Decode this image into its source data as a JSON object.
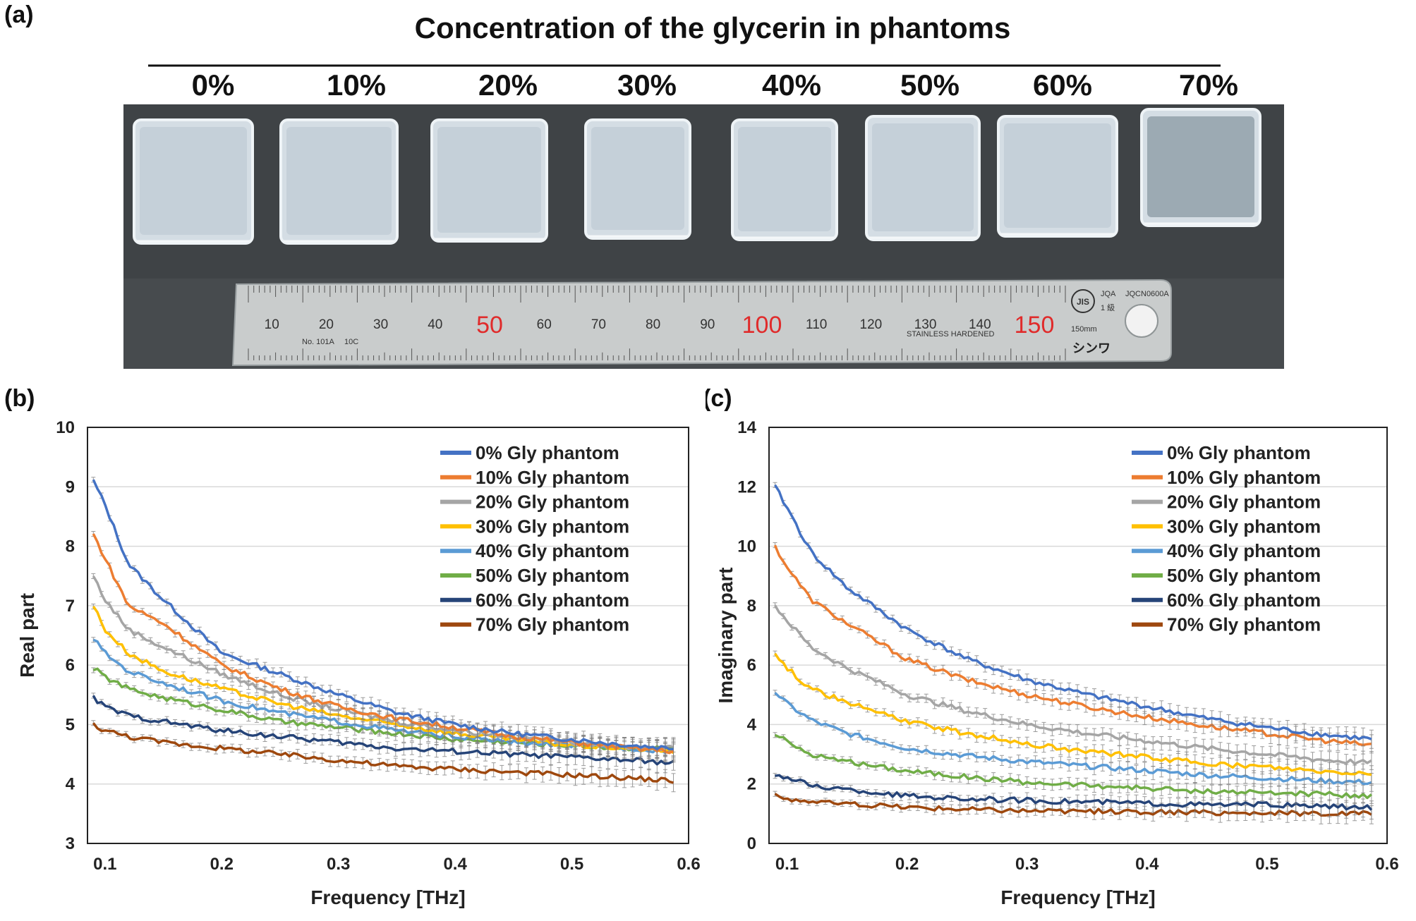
{
  "panel_a": {
    "label": "(a)",
    "title": "Concentration of the glycerin in phantoms",
    "concentrations": [
      "0%",
      "10%",
      "20%",
      "30%",
      "40%",
      "50%",
      "60%",
      "70%"
    ],
    "ruler": {
      "numbers": [
        "10",
        "20",
        "30",
        "40",
        "50",
        "60",
        "70",
        "80",
        "90",
        "100",
        "110",
        "120",
        "130",
        "140",
        "150"
      ],
      "red_numbers": [
        "50",
        "100",
        "150"
      ],
      "small_texts": [
        "No. 101A",
        "10C",
        "STAINLESS HARDENED",
        "JQA",
        "JQCN0600A",
        "1 級",
        "150mm"
      ],
      "badge": "JIS",
      "brand": "シンワ"
    }
  },
  "chart_data": [
    {
      "label": "(b)",
      "type": "line",
      "title": "",
      "xlabel": "Frequency [THz]",
      "ylabel": "Real part",
      "xlim": [
        0.085,
        0.6
      ],
      "ylim": [
        3,
        10
      ],
      "xticks": [
        "0.1",
        "0.2",
        "0.3",
        "0.4",
        "0.5",
        "0.6"
      ],
      "yticks": [
        "3",
        "4",
        "5",
        "6",
        "7",
        "8",
        "9",
        "10"
      ],
      "grid": true,
      "legend_position": "top-right",
      "x": [
        0.09,
        0.1,
        0.12,
        0.15,
        0.2,
        0.25,
        0.3,
        0.35,
        0.4,
        0.45,
        0.5,
        0.55,
        0.59
      ],
      "series": [
        {
          "name": "0% Gly phantom",
          "color": "#4472c4",
          "values": [
            9.1,
            8.7,
            7.7,
            7.1,
            6.2,
            5.85,
            5.5,
            5.2,
            5.0,
            4.85,
            4.75,
            4.65,
            4.6
          ]
        },
        {
          "name": "10% Gly phantom",
          "color": "#ed7d31",
          "values": [
            8.2,
            7.8,
            7.0,
            6.7,
            6.0,
            5.6,
            5.3,
            5.1,
            4.95,
            4.8,
            4.7,
            4.6,
            4.55
          ]
        },
        {
          "name": "20% Gly phantom",
          "color": "#a5a5a5",
          "values": [
            7.5,
            7.1,
            6.6,
            6.3,
            5.85,
            5.5,
            5.25,
            5.05,
            4.9,
            4.8,
            4.7,
            4.62,
            4.6
          ]
        },
        {
          "name": "30% Gly phantom",
          "color": "#ffc000",
          "values": [
            7.0,
            6.6,
            6.2,
            5.9,
            5.6,
            5.35,
            5.15,
            5.0,
            4.85,
            4.75,
            4.65,
            4.6,
            4.55
          ]
        },
        {
          "name": "40% Gly phantom",
          "color": "#5b9bd5",
          "values": [
            6.45,
            6.2,
            5.9,
            5.7,
            5.4,
            5.2,
            5.05,
            4.9,
            4.8,
            4.7,
            4.65,
            4.6,
            4.55
          ]
        },
        {
          "name": "50% Gly phantom",
          "color": "#70ad47",
          "values": [
            5.95,
            5.8,
            5.6,
            5.45,
            5.25,
            5.05,
            4.95,
            4.85,
            4.75,
            4.7,
            4.65,
            4.6,
            4.6
          ]
        },
        {
          "name": "60% Gly phantom",
          "color": "#264478",
          "values": [
            5.45,
            5.3,
            5.15,
            5.05,
            4.9,
            4.8,
            4.7,
            4.6,
            4.55,
            4.5,
            4.45,
            4.4,
            4.35
          ]
        },
        {
          "name": "70% Gly phantom",
          "color": "#9e480e",
          "values": [
            5.0,
            4.9,
            4.8,
            4.7,
            4.6,
            4.5,
            4.4,
            4.3,
            4.25,
            4.2,
            4.15,
            4.1,
            4.05
          ]
        }
      ]
    },
    {
      "label": "(c)",
      "type": "line",
      "title": "",
      "xlabel": "Frequency [THz]",
      "ylabel": "Imaginary part",
      "xlim": [
        0.085,
        0.6
      ],
      "ylim": [
        0,
        14
      ],
      "xticks": [
        "0.1",
        "0.2",
        "0.3",
        "0.4",
        "0.5",
        "0.6"
      ],
      "yticks": [
        "0",
        "2",
        "4",
        "6",
        "8",
        "10",
        "12",
        "14"
      ],
      "grid": true,
      "legend_position": "top-right",
      "x": [
        0.09,
        0.1,
        0.12,
        0.15,
        0.2,
        0.25,
        0.3,
        0.35,
        0.4,
        0.45,
        0.5,
        0.55,
        0.59
      ],
      "series": [
        {
          "name": "0% Gly phantom",
          "color": "#4472c4",
          "values": [
            12.0,
            11.3,
            9.8,
            8.6,
            7.2,
            6.2,
            5.5,
            5.0,
            4.6,
            4.2,
            3.9,
            3.65,
            3.5
          ]
        },
        {
          "name": "10% Gly phantom",
          "color": "#ed7d31",
          "values": [
            10.0,
            9.3,
            8.2,
            7.4,
            6.2,
            5.5,
            5.0,
            4.6,
            4.25,
            3.95,
            3.7,
            3.45,
            3.3
          ]
        },
        {
          "name": "20% Gly phantom",
          "color": "#a5a5a5",
          "values": [
            8.0,
            7.5,
            6.6,
            5.9,
            5.0,
            4.45,
            4.0,
            3.7,
            3.45,
            3.2,
            3.0,
            2.8,
            2.7
          ]
        },
        {
          "name": "30% Gly phantom",
          "color": "#ffc000",
          "values": [
            6.4,
            5.9,
            5.2,
            4.75,
            4.1,
            3.7,
            3.35,
            3.1,
            2.9,
            2.7,
            2.55,
            2.4,
            2.35
          ]
        },
        {
          "name": "40% Gly phantom",
          "color": "#5b9bd5",
          "values": [
            5.1,
            4.7,
            4.15,
            3.7,
            3.2,
            2.95,
            2.75,
            2.6,
            2.45,
            2.3,
            2.2,
            2.1,
            2.05
          ]
        },
        {
          "name": "50% Gly phantom",
          "color": "#70ad47",
          "values": [
            3.7,
            3.4,
            3.0,
            2.75,
            2.45,
            2.25,
            2.05,
            1.95,
            1.85,
            1.75,
            1.7,
            1.65,
            1.6
          ]
        },
        {
          "name": "60% Gly phantom",
          "color": "#264478",
          "values": [
            2.35,
            2.2,
            1.95,
            1.8,
            1.6,
            1.5,
            1.45,
            1.4,
            1.35,
            1.3,
            1.3,
            1.25,
            1.2
          ]
        },
        {
          "name": "70% Gly phantom",
          "color": "#9e480e",
          "values": [
            1.6,
            1.5,
            1.4,
            1.32,
            1.22,
            1.15,
            1.1,
            1.08,
            1.05,
            1.03,
            1.02,
            1.0,
            1.0
          ]
        }
      ]
    }
  ]
}
